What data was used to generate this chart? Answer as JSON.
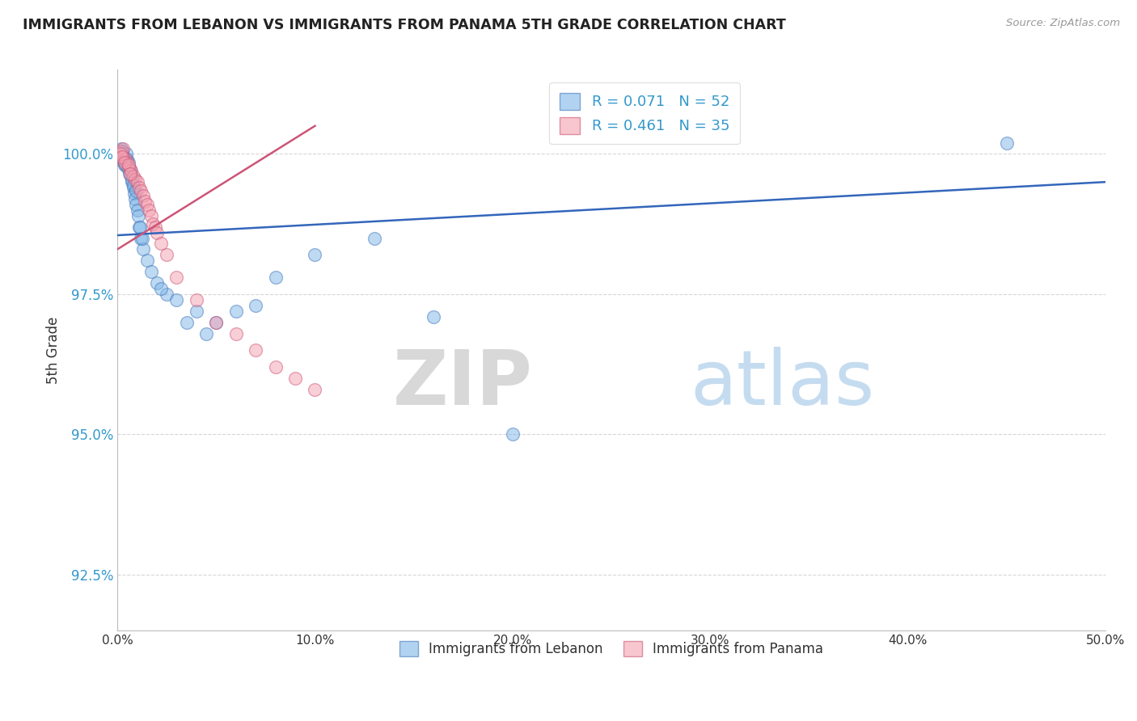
{
  "title": "IMMIGRANTS FROM LEBANON VS IMMIGRANTS FROM PANAMA 5TH GRADE CORRELATION CHART",
  "source": "Source: ZipAtlas.com",
  "ylabel": "5th Grade",
  "xlim": [
    0.0,
    50.0
  ],
  "ylim": [
    91.5,
    101.5
  ],
  "yticks": [
    92.5,
    95.0,
    97.5,
    100.0
  ],
  "ytick_labels": [
    "92.5%",
    "95.0%",
    "97.5%",
    "100.0%"
  ],
  "xticks": [
    0.0,
    10.0,
    20.0,
    30.0,
    40.0,
    50.0
  ],
  "xtick_labels": [
    "0.0%",
    "10.0%",
    "20.0%",
    "30.0%",
    "40.0%",
    "50.0%"
  ],
  "lebanon_color": "#7EB6E8",
  "panama_color": "#F4A0B0",
  "lebanon_edge_color": "#4477BB",
  "panama_edge_color": "#CC5577",
  "lebanon_line_color": "#3366BB",
  "panama_line_color": "#CC5577",
  "legend_line1": "R = 0.071   N = 52",
  "legend_line2": "R = 0.461   N = 35",
  "watermark_zip": "ZIP",
  "watermark_atlas": "atlas",
  "bottom_label1": "Immigrants from Lebanon",
  "bottom_label2": "Immigrants from Panama",
  "lebanon_x": [
    0.1,
    0.15,
    0.2,
    0.25,
    0.3,
    0.35,
    0.4,
    0.45,
    0.5,
    0.55,
    0.6,
    0.65,
    0.7,
    0.75,
    0.8,
    0.85,
    0.9,
    0.95,
    1.0,
    1.1,
    1.2,
    1.3,
    1.5,
    1.7,
    2.0,
    2.5,
    3.0,
    4.0,
    5.0,
    7.0,
    8.0,
    10.0,
    13.0,
    16.0,
    20.0,
    45.0,
    0.12,
    0.22,
    0.32,
    0.42,
    0.52,
    0.62,
    0.72,
    0.82,
    0.92,
    1.05,
    1.15,
    1.25,
    3.5,
    6.0,
    4.5,
    2.2
  ],
  "lebanon_y": [
    99.9,
    100.05,
    100.1,
    100.0,
    99.95,
    99.8,
    99.85,
    100.0,
    99.9,
    99.85,
    99.75,
    99.7,
    99.6,
    99.5,
    99.4,
    99.3,
    99.2,
    99.1,
    99.0,
    98.7,
    98.5,
    98.3,
    98.1,
    97.9,
    97.7,
    97.5,
    97.4,
    97.2,
    97.0,
    97.3,
    97.8,
    98.2,
    98.5,
    97.1,
    95.0,
    100.2,
    99.95,
    100.05,
    99.9,
    99.8,
    99.75,
    99.65,
    99.55,
    99.45,
    99.35,
    98.9,
    98.7,
    98.5,
    97.0,
    97.2,
    96.8,
    97.6
  ],
  "panama_x": [
    0.1,
    0.2,
    0.3,
    0.4,
    0.5,
    0.6,
    0.7,
    0.8,
    0.9,
    1.0,
    1.1,
    1.2,
    1.3,
    1.4,
    1.5,
    1.6,
    1.7,
    1.8,
    1.9,
    2.0,
    2.2,
    2.5,
    3.0,
    4.0,
    5.0,
    6.0,
    7.0,
    8.0,
    9.0,
    10.0,
    0.15,
    0.25,
    0.35,
    0.55,
    0.65
  ],
  "panama_y": [
    99.95,
    100.05,
    100.1,
    99.9,
    99.85,
    99.75,
    99.7,
    99.6,
    99.55,
    99.5,
    99.4,
    99.35,
    99.25,
    99.15,
    99.1,
    99.0,
    98.9,
    98.75,
    98.7,
    98.6,
    98.4,
    98.2,
    97.8,
    97.4,
    97.0,
    96.8,
    96.5,
    96.2,
    96.0,
    95.8,
    100.0,
    99.95,
    99.85,
    99.8,
    99.65
  ],
  "leb_trend_x": [
    0.0,
    50.0
  ],
  "leb_trend_y": [
    98.55,
    99.5
  ],
  "pan_trend_x": [
    0.0,
    10.0
  ],
  "pan_trend_y": [
    98.3,
    100.5
  ]
}
